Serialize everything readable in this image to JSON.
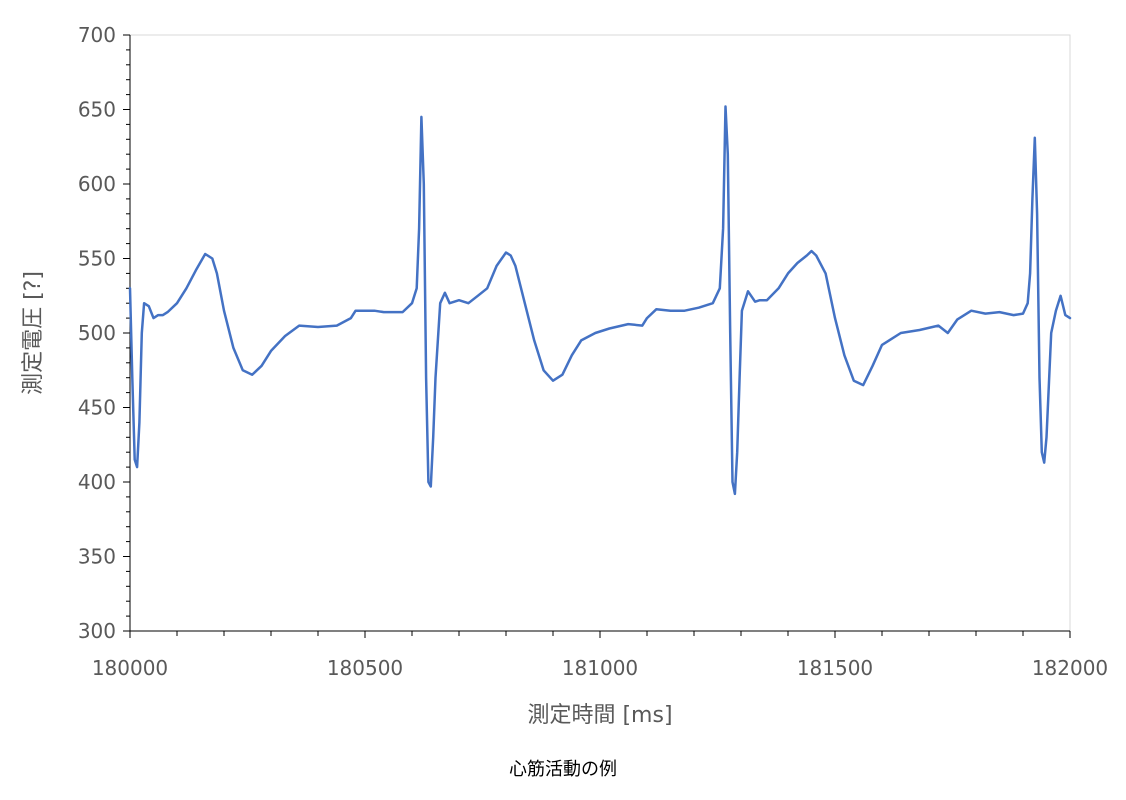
{
  "chart_data": {
    "type": "line",
    "title": "",
    "caption": "心筋活動の例",
    "xlabel": "測定時間 [ms]",
    "ylabel": "測定電圧 [?]",
    "xlim": [
      180000,
      182000
    ],
    "ylim": [
      300,
      700
    ],
    "x_ticks": [
      180000,
      180500,
      181000,
      181500,
      182000
    ],
    "y_ticks": [
      300,
      350,
      400,
      450,
      500,
      550,
      600,
      650,
      700
    ],
    "grid": false,
    "legend": "none",
    "colors": {
      "series": "#4472c4",
      "frame": "#d9d9d9",
      "axis": "#000000",
      "text": "#595959"
    },
    "series": [
      {
        "x": [
          180000,
          180005,
          180010,
          180015,
          180020,
          180025,
          180030,
          180040,
          180050,
          180060,
          180070,
          180080,
          180100,
          180120,
          180140,
          180160,
          180175,
          180185,
          180200,
          180220,
          180240,
          180260,
          180280,
          180300,
          180330,
          180360,
          180400,
          180440,
          180470,
          180480,
          180500,
          180520,
          180540,
          180560,
          180580,
          180600,
          180610,
          180615,
          180620,
          180625,
          180630,
          180635,
          180640,
          180645,
          180650,
          180660,
          180670,
          180680,
          180700,
          180720,
          180740,
          180760,
          180780,
          180800,
          180810,
          180820,
          180840,
          180860,
          180880,
          180900,
          180920,
          180940,
          180960,
          180990,
          181020,
          181060,
          181090,
          181100,
          181120,
          181150,
          181180,
          181210,
          181240,
          181255,
          181262,
          181267,
          181272,
          181277,
          181282,
          181287,
          181292,
          181297,
          181302,
          181315,
          181330,
          181340,
          181355,
          181380,
          181400,
          181420,
          181440,
          181450,
          181460,
          181480,
          181500,
          181520,
          181540,
          181560,
          181580,
          181600,
          181640,
          181680,
          181720,
          181740,
          181760,
          181790,
          181820,
          181850,
          181880,
          181900,
          181910,
          181915,
          181920,
          181925,
          181930,
          181935,
          181940,
          181945,
          181950,
          181960,
          181970,
          181980,
          181990,
          182000
        ],
        "y": [
          530,
          470,
          415,
          410,
          440,
          500,
          520,
          518,
          510,
          512,
          512,
          514,
          520,
          530,
          542,
          553,
          550,
          540,
          515,
          490,
          475,
          472,
          478,
          488,
          498,
          505,
          504,
          505,
          510,
          515,
          515,
          515,
          514,
          514,
          514,
          520,
          530,
          570,
          645,
          600,
          470,
          400,
          397,
          430,
          470,
          520,
          527,
          520,
          522,
          520,
          525,
          530,
          545,
          554,
          552,
          545,
          520,
          495,
          475,
          468,
          472,
          485,
          495,
          500,
          503,
          506,
          505,
          510,
          516,
          515,
          515,
          517,
          520,
          530,
          570,
          652,
          620,
          500,
          400,
          392,
          420,
          470,
          515,
          528,
          521,
          522,
          522,
          530,
          540,
          547,
          552,
          555,
          552,
          540,
          510,
          485,
          468,
          465,
          478,
          492,
          500,
          502,
          505,
          500,
          509,
          515,
          513,
          514,
          512,
          513,
          520,
          540,
          590,
          631,
          580,
          470,
          420,
          413,
          430,
          500,
          515,
          525,
          512,
          510
        ]
      }
    ]
  }
}
